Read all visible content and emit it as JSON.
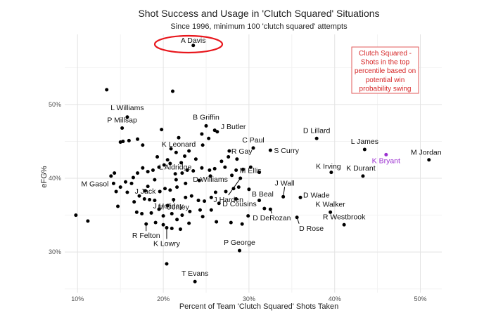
{
  "chart_data": {
    "type": "scatter",
    "title": "Shot Success and Usage in 'Clutch Squared' Situations",
    "subtitle": "Since 1996, minimum 100 'clutch squared' attempts",
    "xlabel": "Percent of Team 'Clutch Squared' Shots Taken",
    "ylabel": "eFG%",
    "xlim": [
      8.5,
      52.5
    ],
    "ylim": [
      24.5,
      59.5
    ],
    "x_ticks": [
      10,
      20,
      30,
      40,
      50
    ],
    "x_tick_labels": [
      "10%",
      "20%",
      "30%",
      "40%",
      "50%"
    ],
    "y_ticks": [
      30,
      40,
      50
    ],
    "y_tick_labels": [
      "30%",
      "40%",
      "50%"
    ],
    "grid": true,
    "highlight_color": "#9b30d0",
    "annotation_color": "#d62728",
    "annotation": {
      "lines": [
        "Clutch Squared -",
        "Shots in the top",
        "percentile based on",
        "potential win",
        "probability swing"
      ]
    },
    "circled_player": "A Davis",
    "labeled_points": [
      {
        "label": "A Davis",
        "x": 23.5,
        "y": 58.0
      },
      {
        "label": "L Williams",
        "x": 15.8,
        "y": 48.3
      },
      {
        "label": "P Millsap",
        "x": 15.2,
        "y": 46.8
      },
      {
        "label": "B Griffin",
        "x": 25.0,
        "y": 47.1
      },
      {
        "label": "J Butler",
        "x": 26.3,
        "y": 46.3
      },
      {
        "label": "K Leonard",
        "x": 21.8,
        "y": 45.5
      },
      {
        "label": "C Paul",
        "x": 30.5,
        "y": 44.1
      },
      {
        "label": "D Lillard",
        "x": 37.9,
        "y": 45.4
      },
      {
        "label": "L James",
        "x": 43.5,
        "y": 43.9
      },
      {
        "label": "K Bryant",
        "x": 46.0,
        "y": 43.2,
        "highlight": true
      },
      {
        "label": "M Jordan",
        "x": 51.0,
        "y": 42.5
      },
      {
        "label": "R Gay",
        "x": 27.7,
        "y": 43.7
      },
      {
        "label": "S Curry",
        "x": 32.5,
        "y": 43.8
      },
      {
        "label": "M Ellis",
        "x": 28.5,
        "y": 41.1
      },
      {
        "label": "K Irving",
        "x": 39.6,
        "y": 40.8
      },
      {
        "label": "K Durant",
        "x": 43.3,
        "y": 40.3
      },
      {
        "label": "L Aldridge",
        "x": 21.4,
        "y": 40.6
      },
      {
        "label": "D Williams",
        "x": 25.5,
        "y": 40.3
      },
      {
        "label": "M Gasol",
        "x": 14.2,
        "y": 39.3
      },
      {
        "label": "J Jack",
        "x": 17.9,
        "y": 38.3
      },
      {
        "label": "M Conley",
        "x": 21.2,
        "y": 37.1
      },
      {
        "label": "J Harden",
        "x": 29.0,
        "y": 40.0
      },
      {
        "label": "B Beal",
        "x": 30.0,
        "y": 38.5
      },
      {
        "label": "J Wall",
        "x": 34.0,
        "y": 37.5
      },
      {
        "label": "D Wade",
        "x": 36.0,
        "y": 37.4
      },
      {
        "label": "J Holiday",
        "x": 20.5,
        "y": 36.3
      },
      {
        "label": "D Cousins",
        "x": 26.5,
        "y": 36.6
      },
      {
        "label": "K Walker",
        "x": 39.5,
        "y": 35.4
      },
      {
        "label": "D DeRozan",
        "x": 32.5,
        "y": 35.8
      },
      {
        "label": "R Westbrook",
        "x": 41.1,
        "y": 33.7
      },
      {
        "label": "D Rose",
        "x": 35.6,
        "y": 34.7
      },
      {
        "label": "R Felton",
        "x": 18.0,
        "y": 33.8
      },
      {
        "label": "K Lowry",
        "x": 20.4,
        "y": 33.3
      },
      {
        "label": "P George",
        "x": 28.9,
        "y": 30.2
      },
      {
        "label": "T Evans",
        "x": 23.7,
        "y": 26.0
      }
    ],
    "other_points": [
      [
        13.4,
        52.0
      ],
      [
        21.1,
        51.8
      ],
      [
        9.8,
        35.0
      ],
      [
        11.2,
        34.2
      ],
      [
        20.4,
        28.4
      ],
      [
        15.0,
        44.9
      ],
      [
        15.3,
        45.0
      ],
      [
        16.0,
        45.1
      ],
      [
        17.0,
        45.3
      ],
      [
        17.6,
        44.5
      ],
      [
        19.3,
        42.9
      ],
      [
        19.8,
        46.6
      ],
      [
        20.5,
        42.5
      ],
      [
        20.9,
        44.0
      ],
      [
        21.5,
        43.5
      ],
      [
        22.1,
        42.1
      ],
      [
        22.5,
        43.0
      ],
      [
        23.0,
        43.7
      ],
      [
        23.8,
        42.6
      ],
      [
        24.5,
        46.0
      ],
      [
        24.6,
        44.5
      ],
      [
        25.3,
        45.4
      ],
      [
        26.0,
        46.5
      ],
      [
        26.8,
        42.3
      ],
      [
        27.2,
        41.5
      ],
      [
        26.0,
        41.3
      ],
      [
        25.4,
        41.1
      ],
      [
        24.5,
        41.4
      ],
      [
        23.5,
        41.0
      ],
      [
        22.8,
        41.1
      ],
      [
        22.2,
        40.7
      ],
      [
        21.5,
        39.8
      ],
      [
        20.8,
        42.0
      ],
      [
        20.1,
        41.8
      ],
      [
        19.5,
        41.5
      ],
      [
        18.8,
        41.1
      ],
      [
        18.2,
        40.9
      ],
      [
        17.6,
        41.4
      ],
      [
        17.0,
        40.7
      ],
      [
        16.5,
        40.1
      ],
      [
        16.3,
        39.3
      ],
      [
        15.6,
        39.5
      ],
      [
        15.0,
        38.8
      ],
      [
        14.5,
        38.2
      ],
      [
        13.9,
        40.3
      ],
      [
        14.3,
        40.7
      ],
      [
        17.2,
        37.6
      ],
      [
        17.8,
        37.2
      ],
      [
        18.4,
        37.1
      ],
      [
        19.0,
        37.0
      ],
      [
        19.6,
        38.2
      ],
      [
        20.2,
        38.6
      ],
      [
        20.8,
        38.4
      ],
      [
        22.6,
        37.4
      ],
      [
        23.3,
        37.6
      ],
      [
        24.1,
        37.0
      ],
      [
        24.8,
        36.9
      ],
      [
        25.6,
        37.4
      ],
      [
        26.1,
        38.1
      ],
      [
        27.3,
        38.2
      ],
      [
        28.2,
        38.6
      ],
      [
        28.8,
        38.8
      ],
      [
        19.0,
        39.8
      ],
      [
        18.2,
        38.9
      ],
      [
        16.6,
        36.8
      ],
      [
        16.9,
        35.4
      ],
      [
        17.5,
        35.2
      ],
      [
        18.6,
        35.3
      ],
      [
        19.5,
        35.8
      ],
      [
        20.0,
        34.9
      ],
      [
        21.0,
        35.2
      ],
      [
        21.6,
        34.4
      ],
      [
        22.2,
        35.0
      ],
      [
        23.1,
        35.5
      ],
      [
        24.3,
        35.7
      ],
      [
        25.6,
        35.7
      ],
      [
        26.2,
        34.1
      ],
      [
        27.9,
        34.0
      ],
      [
        29.9,
        34.9
      ],
      [
        31.8,
        35.9
      ],
      [
        24.6,
        34.8
      ],
      [
        19.1,
        34.0
      ],
      [
        20.0,
        33.7
      ],
      [
        23.0,
        33.9
      ],
      [
        14.7,
        36.2
      ],
      [
        22.0,
        33.1
      ],
      [
        21.0,
        33.2
      ],
      [
        29.2,
        33.8
      ],
      [
        31.2,
        40.8
      ],
      [
        30.2,
        41.5
      ],
      [
        29.3,
        41.2
      ],
      [
        28.6,
        42.6
      ],
      [
        27.6,
        42.9
      ],
      [
        28.0,
        40.4
      ],
      [
        24.2,
        39.7
      ],
      [
        22.6,
        39.3
      ],
      [
        21.6,
        38.8
      ],
      [
        15.8,
        38.1
      ],
      [
        28.5,
        37.2
      ],
      [
        31.2,
        37.0
      ]
    ]
  }
}
